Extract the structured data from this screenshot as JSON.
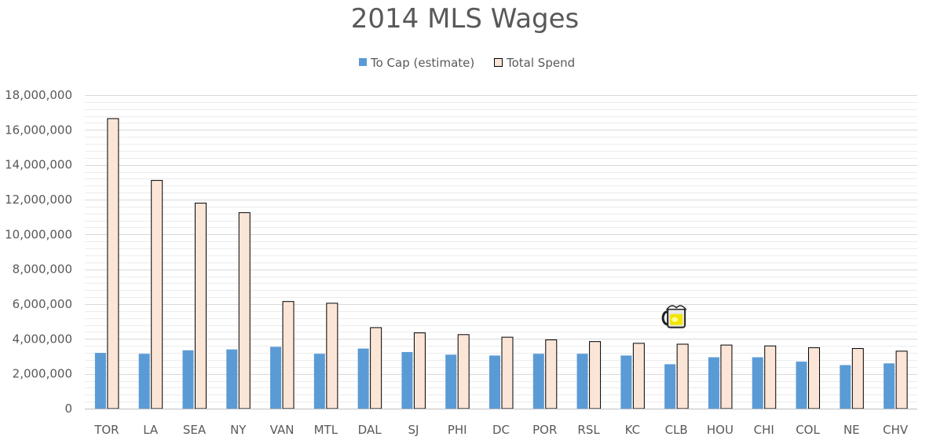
{
  "chart_data": {
    "type": "bar",
    "title": "2014 MLS Wages",
    "xlabel": "",
    "ylabel": "",
    "ylim": [
      0,
      18000000
    ],
    "y_major_step": 2000000,
    "y_minor_step": 400000,
    "y_tick_labels": [
      "0",
      "2,000,000",
      "4,000,000",
      "6,000,000",
      "8,000,000",
      "10,000,000",
      "12,000,000",
      "14,000,000",
      "16,000,000",
      "18,000,000"
    ],
    "grid": true,
    "legend_position": "top",
    "categories": [
      "TOR",
      "LA",
      "SEA",
      "NY",
      "VAN",
      "MTL",
      "DAL",
      "SJ",
      "PHI",
      "DC",
      "POR",
      "RSL",
      "KC",
      "CLB",
      "HOU",
      "CHI",
      "COL",
      "NE",
      "CHV"
    ],
    "series": [
      {
        "name": "To Cap (estimate)",
        "color": "#5b9bd5",
        "values": [
          3200000,
          3150000,
          3350000,
          3400000,
          3550000,
          3150000,
          3450000,
          3250000,
          3100000,
          3050000,
          3150000,
          3150000,
          3050000,
          2550000,
          2950000,
          2950000,
          2700000,
          2500000,
          2600000
        ]
      },
      {
        "name": "Total Spend",
        "color": "#fbe5d6",
        "values": [
          16650000,
          13100000,
          11800000,
          11250000,
          6150000,
          6050000,
          4650000,
          4350000,
          4250000,
          4100000,
          3950000,
          3850000,
          3750000,
          3700000,
          3650000,
          3600000,
          3500000,
          3450000,
          3300000
        ]
      }
    ],
    "annotation": {
      "icon": "beer-mug-icon",
      "near_category": "CLB",
      "y_value": 5250000
    }
  }
}
